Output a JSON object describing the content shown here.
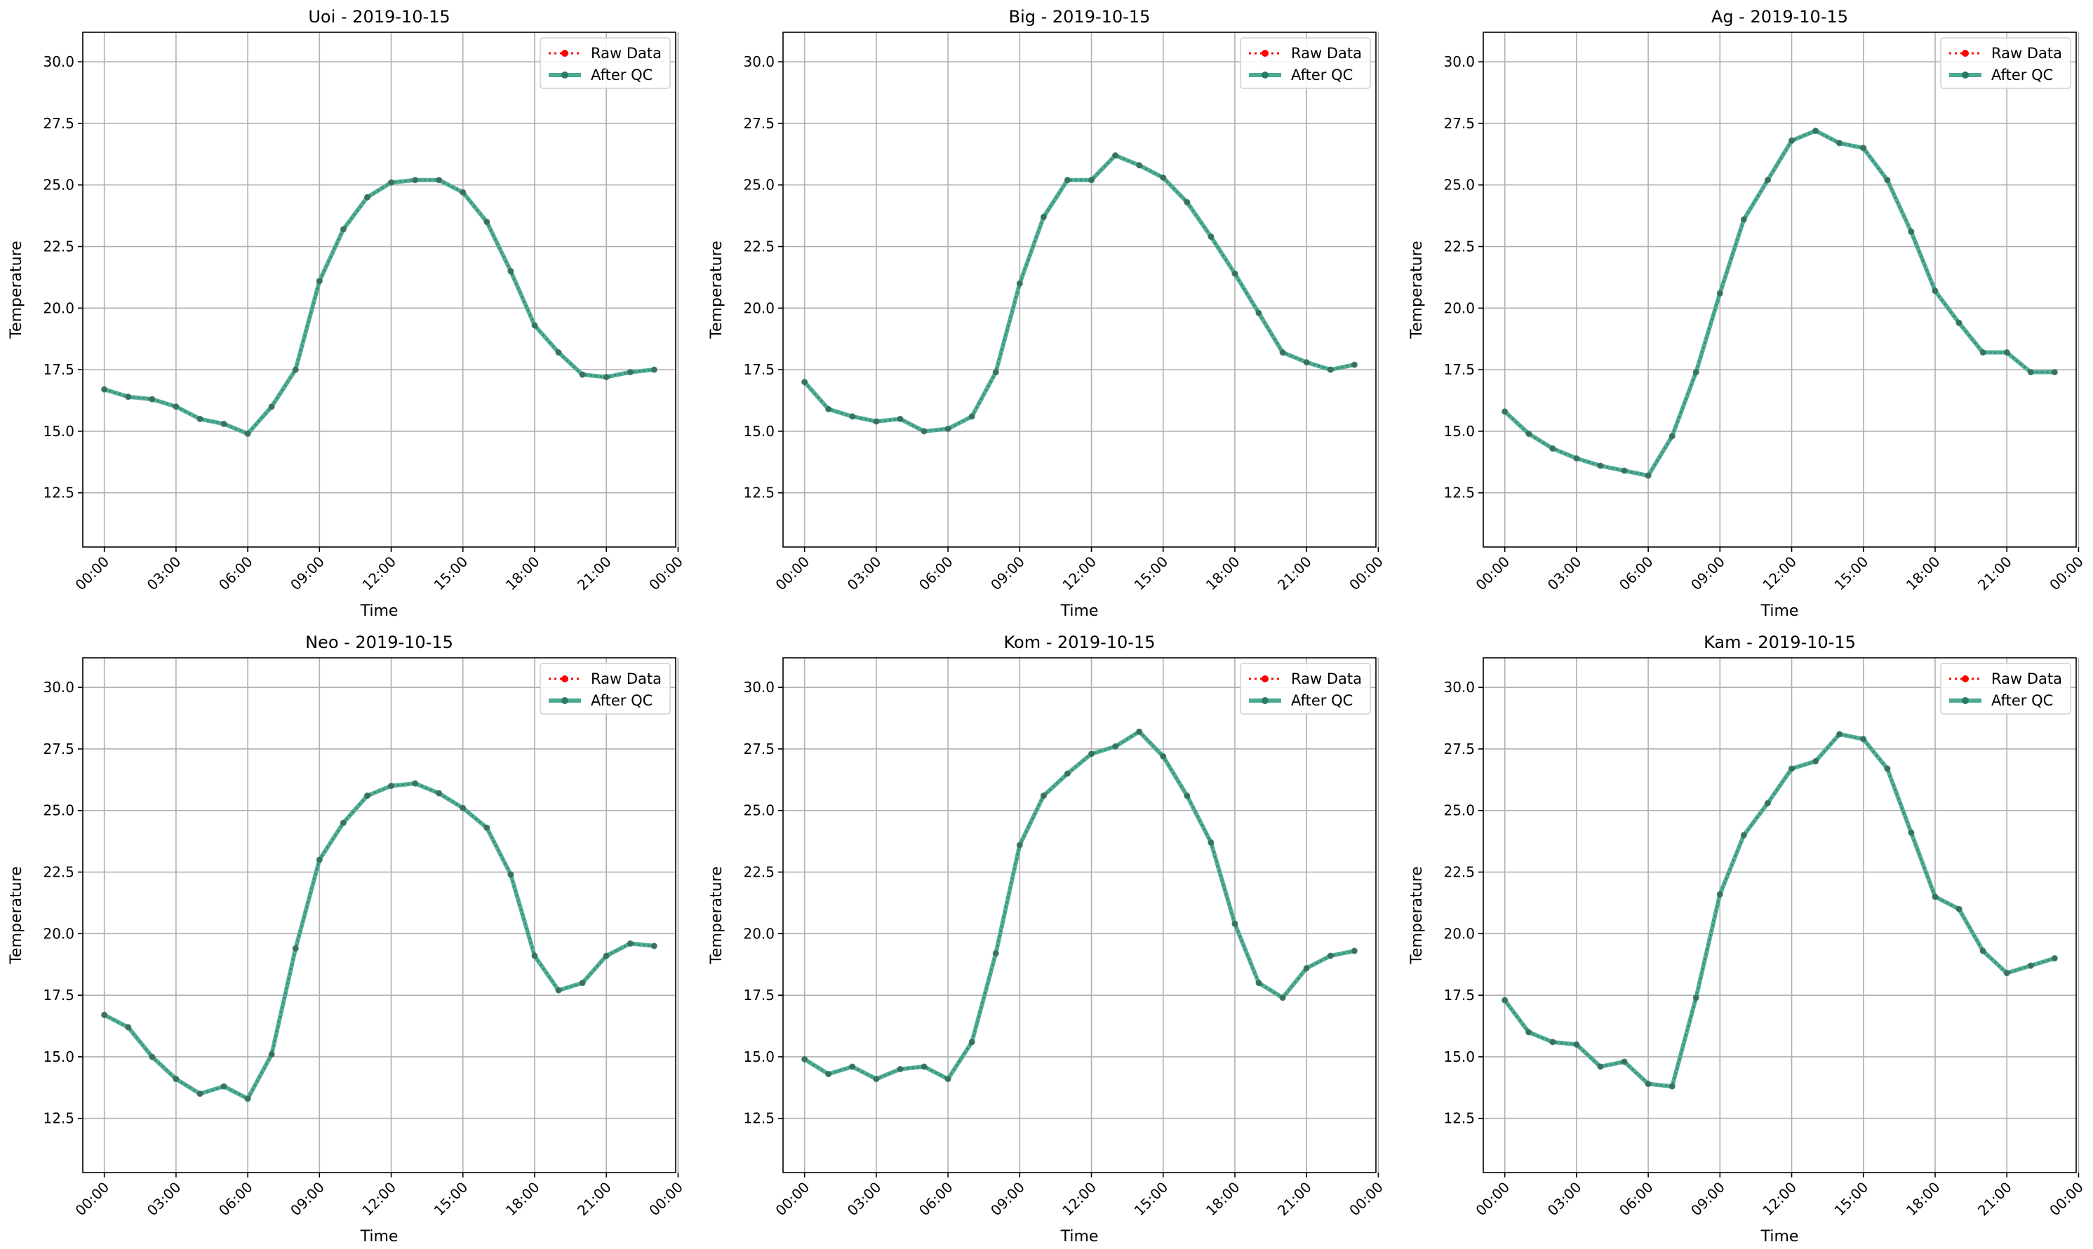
{
  "legend": {
    "raw_label": "Raw Data",
    "qc_label": "After QC"
  },
  "colors": {
    "raw": "#ff0000",
    "qc_line": "#4aaa92",
    "qc_marker": "#2a7a66",
    "grid": "#b0b0b0",
    "axis": "#000000"
  },
  "chart_data": [
    {
      "type": "line",
      "title": "Uoi - 2019-10-15",
      "xlabel": "Time",
      "ylabel": "Temperature",
      "ylim": [
        10.3,
        31.2
      ],
      "xlim": [
        -0.9,
        23.9
      ],
      "x_ticks": [
        "00:00",
        "03:00",
        "06:00",
        "09:00",
        "12:00",
        "15:00",
        "18:00",
        "21:00",
        "00:00"
      ],
      "y_ticks": [
        "12.5",
        "15.0",
        "17.5",
        "20.0",
        "22.5",
        "25.0",
        "27.5",
        "30.0"
      ],
      "grid": true,
      "legend_position": "top-right",
      "x": [
        0,
        1,
        2,
        3,
        4,
        5,
        6,
        7,
        8,
        9,
        10,
        11,
        12,
        13,
        14,
        15,
        16,
        17,
        18,
        19,
        20,
        21,
        22,
        23
      ],
      "series": [
        {
          "name": "Raw Data",
          "values": [
            16.7,
            16.4,
            16.3,
            16.0,
            15.5,
            15.3,
            14.9,
            16.0,
            17.5,
            21.1,
            23.2,
            24.5,
            25.1,
            25.2,
            25.2,
            24.7,
            23.5,
            21.5,
            19.3,
            18.2,
            17.3,
            17.2,
            17.4,
            17.5
          ]
        },
        {
          "name": "After QC",
          "values": [
            16.7,
            16.4,
            16.3,
            16.0,
            15.5,
            15.3,
            14.9,
            16.0,
            17.5,
            21.1,
            23.2,
            24.5,
            25.1,
            25.2,
            25.2,
            24.7,
            23.5,
            21.5,
            19.3,
            18.2,
            17.3,
            17.2,
            17.4,
            17.5
          ]
        }
      ]
    },
    {
      "type": "line",
      "title": "Big - 2019-10-15",
      "xlabel": "Time",
      "ylabel": "Temperature",
      "ylim": [
        10.3,
        31.2
      ],
      "xlim": [
        -0.9,
        23.9
      ],
      "x_ticks": [
        "00:00",
        "03:00",
        "06:00",
        "09:00",
        "12:00",
        "15:00",
        "18:00",
        "21:00",
        "00:00"
      ],
      "y_ticks": [
        "12.5",
        "15.0",
        "17.5",
        "20.0",
        "22.5",
        "25.0",
        "27.5",
        "30.0"
      ],
      "grid": true,
      "legend_position": "top-right",
      "x": [
        0,
        1,
        2,
        3,
        4,
        5,
        6,
        7,
        8,
        9,
        10,
        11,
        12,
        13,
        14,
        15,
        16,
        17,
        18,
        19,
        20,
        21,
        22,
        23
      ],
      "series": [
        {
          "name": "Raw Data",
          "values": [
            17.0,
            15.9,
            15.6,
            15.4,
            15.5,
            15.0,
            15.1,
            15.6,
            17.4,
            21.0,
            23.7,
            25.2,
            25.2,
            26.2,
            25.8,
            25.3,
            24.3,
            22.9,
            21.4,
            19.8,
            18.2,
            17.8,
            17.5,
            17.7
          ]
        },
        {
          "name": "After QC",
          "values": [
            17.0,
            15.9,
            15.6,
            15.4,
            15.5,
            15.0,
            15.1,
            15.6,
            17.4,
            21.0,
            23.7,
            25.2,
            25.2,
            26.2,
            25.8,
            25.3,
            24.3,
            22.9,
            21.4,
            19.8,
            18.2,
            17.8,
            17.5,
            17.7
          ]
        }
      ]
    },
    {
      "type": "line",
      "title": "Ag - 2019-10-15",
      "xlabel": "Time",
      "ylabel": "Temperature",
      "ylim": [
        10.3,
        31.2
      ],
      "xlim": [
        -0.9,
        23.9
      ],
      "x_ticks": [
        "00:00",
        "03:00",
        "06:00",
        "09:00",
        "12:00",
        "15:00",
        "18:00",
        "21:00",
        "00:00"
      ],
      "y_ticks": [
        "12.5",
        "15.0",
        "17.5",
        "20.0",
        "22.5",
        "25.0",
        "27.5",
        "30.0"
      ],
      "grid": true,
      "legend_position": "top-right",
      "x": [
        0,
        1,
        2,
        3,
        4,
        5,
        6,
        7,
        8,
        9,
        10,
        11,
        12,
        13,
        14,
        15,
        16,
        17,
        18,
        19,
        20,
        21,
        22,
        23
      ],
      "series": [
        {
          "name": "Raw Data",
          "values": [
            15.8,
            14.9,
            14.3,
            13.9,
            13.6,
            13.4,
            13.2,
            14.8,
            17.4,
            20.6,
            23.6,
            25.2,
            26.8,
            27.2,
            26.7,
            26.5,
            25.2,
            23.1,
            20.7,
            19.4,
            18.2,
            18.2,
            17.4,
            17.4
          ]
        },
        {
          "name": "After QC",
          "values": [
            15.8,
            14.9,
            14.3,
            13.9,
            13.6,
            13.4,
            13.2,
            14.8,
            17.4,
            20.6,
            23.6,
            25.2,
            26.8,
            27.2,
            26.7,
            26.5,
            25.2,
            23.1,
            20.7,
            19.4,
            18.2,
            18.2,
            17.4,
            17.4
          ]
        }
      ]
    },
    {
      "type": "line",
      "title": "Neo - 2019-10-15",
      "xlabel": "Time",
      "ylabel": "Temperature",
      "ylim": [
        10.3,
        31.2
      ],
      "xlim": [
        -0.9,
        23.9
      ],
      "x_ticks": [
        "00:00",
        "03:00",
        "06:00",
        "09:00",
        "12:00",
        "15:00",
        "18:00",
        "21:00",
        "00:00"
      ],
      "y_ticks": [
        "12.5",
        "15.0",
        "17.5",
        "20.0",
        "22.5",
        "25.0",
        "27.5",
        "30.0"
      ],
      "grid": true,
      "legend_position": "top-right",
      "x": [
        0,
        1,
        2,
        3,
        4,
        5,
        6,
        7,
        8,
        9,
        10,
        11,
        12,
        13,
        14,
        15,
        16,
        17,
        18,
        19,
        20,
        21,
        22,
        23
      ],
      "series": [
        {
          "name": "Raw Data",
          "values": [
            16.7,
            16.2,
            15.0,
            14.1,
            13.5,
            13.8,
            13.3,
            15.1,
            19.4,
            23.0,
            24.5,
            25.6,
            26.0,
            26.1,
            25.7,
            25.1,
            24.3,
            22.4,
            19.1,
            17.7,
            18.0,
            19.1,
            19.6,
            19.5
          ]
        },
        {
          "name": "After QC",
          "values": [
            16.7,
            16.2,
            15.0,
            14.1,
            13.5,
            13.8,
            13.3,
            15.1,
            19.4,
            23.0,
            24.5,
            25.6,
            26.0,
            26.1,
            25.7,
            25.1,
            24.3,
            22.4,
            19.1,
            17.7,
            18.0,
            19.1,
            19.6,
            19.5
          ]
        }
      ]
    },
    {
      "type": "line",
      "title": "Kom - 2019-10-15",
      "xlabel": "Time",
      "ylabel": "Temperature",
      "ylim": [
        10.3,
        31.2
      ],
      "xlim": [
        -0.9,
        23.9
      ],
      "x_ticks": [
        "00:00",
        "03:00",
        "06:00",
        "09:00",
        "12:00",
        "15:00",
        "18:00",
        "21:00",
        "00:00"
      ],
      "y_ticks": [
        "12.5",
        "15.0",
        "17.5",
        "20.0",
        "22.5",
        "25.0",
        "27.5",
        "30.0"
      ],
      "grid": true,
      "legend_position": "top-right",
      "x": [
        0,
        1,
        2,
        3,
        4,
        5,
        6,
        7,
        8,
        9,
        10,
        11,
        12,
        13,
        14,
        15,
        16,
        17,
        18,
        19,
        20,
        21,
        22,
        23
      ],
      "series": [
        {
          "name": "Raw Data",
          "values": [
            14.9,
            14.3,
            14.6,
            14.1,
            14.5,
            14.6,
            14.1,
            15.6,
            19.2,
            23.6,
            25.6,
            26.5,
            27.3,
            27.6,
            28.2,
            27.2,
            25.6,
            23.7,
            20.4,
            18.0,
            17.4,
            18.6,
            19.1,
            19.3
          ]
        },
        {
          "name": "After QC",
          "values": [
            14.9,
            14.3,
            14.6,
            14.1,
            14.5,
            14.6,
            14.1,
            15.6,
            19.2,
            23.6,
            25.6,
            26.5,
            27.3,
            27.6,
            28.2,
            27.2,
            25.6,
            23.7,
            20.4,
            18.0,
            17.4,
            18.6,
            19.1,
            19.3
          ]
        }
      ]
    },
    {
      "type": "line",
      "title": "Kam - 2019-10-15",
      "xlabel": "Time",
      "ylabel": "Temperature",
      "ylim": [
        10.3,
        31.2
      ],
      "xlim": [
        -0.9,
        23.9
      ],
      "x_ticks": [
        "00:00",
        "03:00",
        "06:00",
        "09:00",
        "12:00",
        "15:00",
        "18:00",
        "21:00",
        "00:00"
      ],
      "y_ticks": [
        "12.5",
        "15.0",
        "17.5",
        "20.0",
        "22.5",
        "25.0",
        "27.5",
        "30.0"
      ],
      "grid": true,
      "legend_position": "top-right",
      "x": [
        0,
        1,
        2,
        3,
        4,
        5,
        6,
        7,
        8,
        9,
        10,
        11,
        12,
        13,
        14,
        15,
        16,
        17,
        18,
        19,
        20,
        21,
        22,
        23
      ],
      "series": [
        {
          "name": "Raw Data",
          "values": [
            17.3,
            16.0,
            15.6,
            15.5,
            14.6,
            14.8,
            13.9,
            13.8,
            17.4,
            21.6,
            24.0,
            25.3,
            26.7,
            27.0,
            28.1,
            27.9,
            26.7,
            24.1,
            21.5,
            21.0,
            19.3,
            18.4,
            18.7,
            19.0
          ]
        },
        {
          "name": "After QC",
          "values": [
            17.3,
            16.0,
            15.6,
            15.5,
            14.6,
            14.8,
            13.9,
            13.8,
            17.4,
            21.6,
            24.0,
            25.3,
            26.7,
            27.0,
            28.1,
            27.9,
            26.7,
            24.1,
            21.5,
            21.0,
            19.3,
            18.4,
            18.7,
            19.0
          ]
        }
      ]
    }
  ]
}
